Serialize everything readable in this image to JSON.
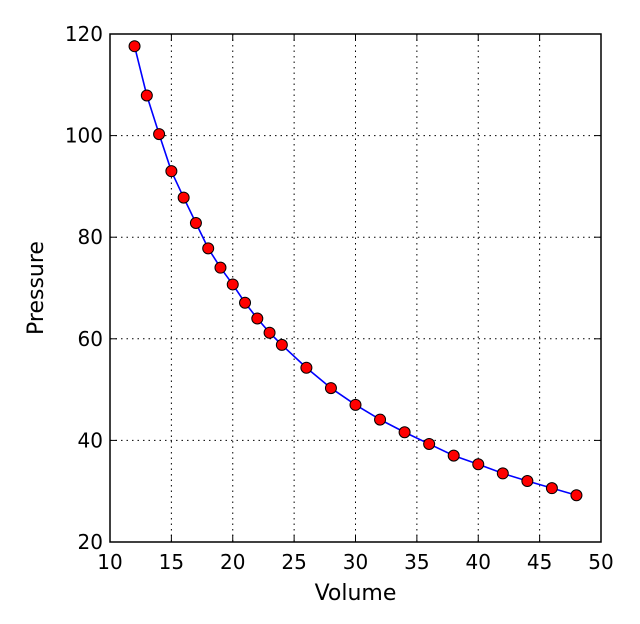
{
  "chart_data": {
    "type": "line",
    "xlabel": "Volume",
    "ylabel": "Pressure",
    "xlim": [
      10,
      50
    ],
    "ylim": [
      20,
      120
    ],
    "xticks": [
      10,
      15,
      20,
      25,
      30,
      35,
      40,
      45,
      50
    ],
    "yticks": [
      20,
      40,
      60,
      80,
      100,
      120
    ],
    "grid": true,
    "series": [
      {
        "line_color": "#0000ff",
        "marker_color": "#ff0000",
        "marker_edge": "#000000",
        "x": [
          12,
          13,
          14,
          15,
          16,
          17,
          18,
          19,
          20,
          21,
          22,
          23,
          24,
          26,
          28,
          30,
          32,
          34,
          36,
          38,
          40,
          42,
          44,
          46,
          48
        ],
        "y": [
          117.6,
          107.9,
          100.3,
          93.0,
          87.8,
          82.8,
          77.8,
          74.0,
          70.7,
          67.1,
          64.0,
          61.2,
          58.8,
          54.3,
          50.3,
          47.0,
          44.1,
          41.6,
          39.3,
          37.0,
          35.3,
          33.5,
          32.0,
          30.6,
          29.2
        ]
      }
    ]
  }
}
